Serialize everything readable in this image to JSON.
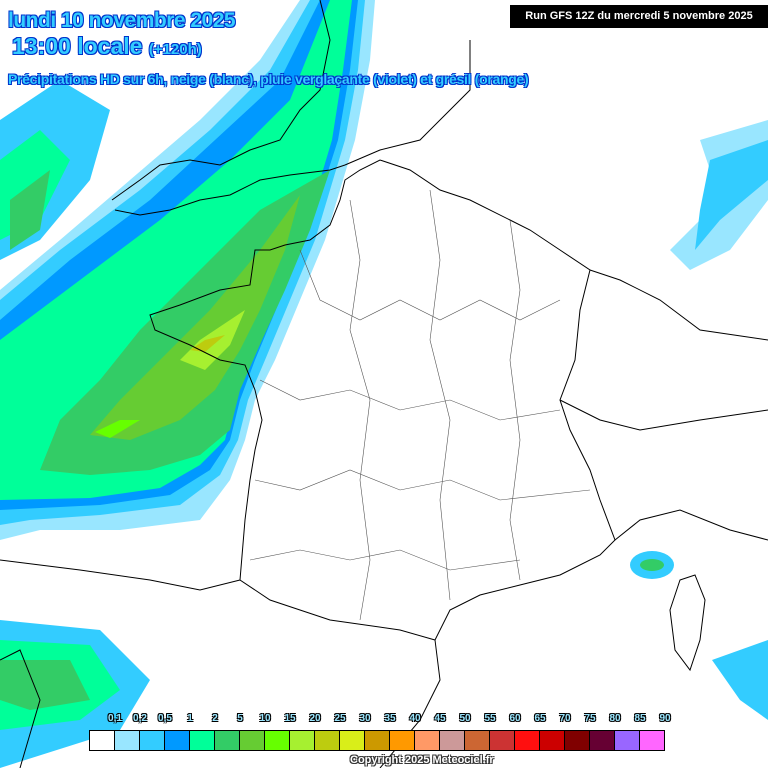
{
  "header": {
    "date": "lundi 10 novembre 2025",
    "time": "13:00 locale",
    "lead": "(+120h)",
    "subtitle": "Précipitations HD sur 6h, neige (blanc), pluie verglaçante (violet) et grésil (orange)",
    "run": "Run GFS 12Z du mercredi 5 novembre 2025"
  },
  "legend": {
    "labels": [
      "0,1",
      "0,2",
      "0,5",
      "1",
      "2",
      "5",
      "10",
      "15",
      "20",
      "25",
      "30",
      "35",
      "40",
      "45",
      "50",
      "55",
      "60",
      "65",
      "70",
      "75",
      "80",
      "85",
      "90"
    ],
    "colors": [
      "#ffffff",
      "#99e6ff",
      "#33ccff",
      "#0099ff",
      "#00ff99",
      "#33cc66",
      "#66cc33",
      "#66ff00",
      "#a6f030",
      "#bdcc0f",
      "#d9ee19",
      "#cc9900",
      "#ff9900",
      "#ff9966",
      "#cc9999",
      "#cc6633",
      "#cc3333",
      "#ff0f0f",
      "#cc0000",
      "#800000",
      "#660033",
      "#9966ff",
      "#ff66ff"
    ]
  },
  "copyright": "Copyright 2025 Meteociel.fr"
}
